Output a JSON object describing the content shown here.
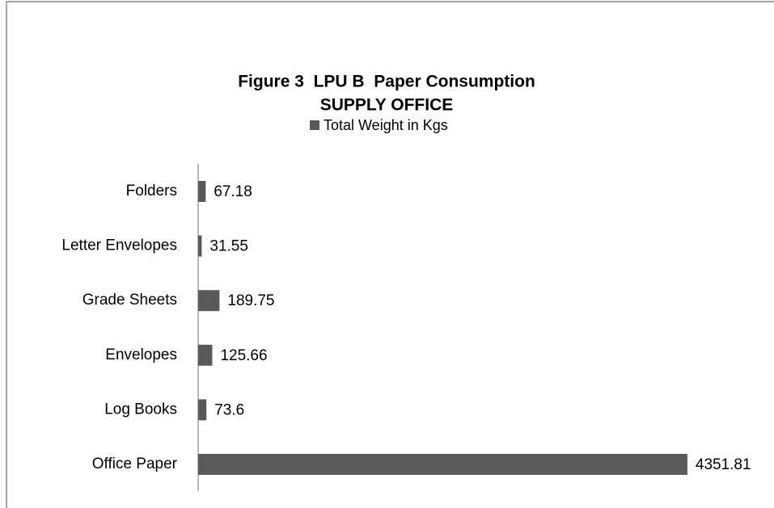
{
  "chart_data": {
    "type": "barh",
    "title": "Figure 3  LPU B  Paper Consumption",
    "subtitle": "SUPPLY OFFICE",
    "categories": [
      "Folders",
      "Letter Envelopes",
      "Grade Sheets",
      "Envelopes",
      "Log Books",
      "Office Paper"
    ],
    "series": [
      {
        "name": "Total Weight in Kgs",
        "color": "#595959",
        "values": [
          67.18,
          31.55,
          189.75,
          125.66,
          73.6,
          4351.81
        ]
      }
    ],
    "xlim": [
      0,
      5000
    ],
    "legend": "top"
  }
}
